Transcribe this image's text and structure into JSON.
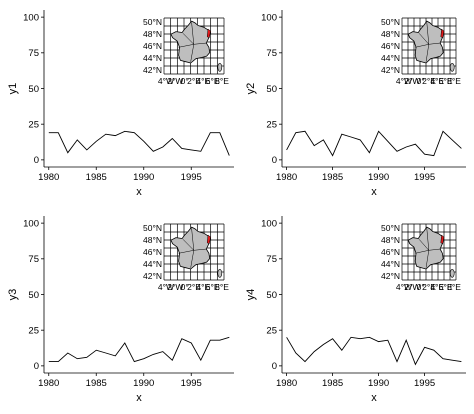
{
  "chart_data": [
    {
      "type": "line",
      "xlabel": "x",
      "ylabel": "y1",
      "xlim": [
        1979.5,
        1999.5
      ],
      "ylim": [
        -5,
        105
      ],
      "xticks": [
        "1980",
        "1985",
        "1990",
        "1995"
      ],
      "yticks": [
        "0",
        "25",
        "50",
        "75",
        "100"
      ],
      "grid": false,
      "x": [
        1980,
        1981,
        1982,
        1983,
        1984,
        1985,
        1986,
        1987,
        1988,
        1989,
        1990,
        1991,
        1992,
        1993,
        1994,
        1995,
        1996,
        1997,
        1998,
        1999
      ],
      "series": [
        {
          "values": [
            19,
            19,
            5,
            14,
            7,
            13,
            18,
            17,
            20,
            19,
            13,
            6,
            9,
            15,
            8,
            7,
            6,
            19,
            19,
            3
          ]
        }
      ],
      "inset_map": {
        "lat_labels": [
          "50°N",
          "48°N",
          "46°N",
          "44°N",
          "42°N"
        ],
        "lon_labels": [
          "4°W",
          "2°W",
          "0°",
          "2°E",
          "4°E",
          "6°E",
          "8°E"
        ]
      }
    },
    {
      "type": "line",
      "xlabel": "x",
      "ylabel": "y2",
      "xlim": [
        1979.5,
        1999.5
      ],
      "ylim": [
        -5,
        105
      ],
      "xticks": [
        "1980",
        "1985",
        "1990",
        "1995"
      ],
      "yticks": [
        "0",
        "25",
        "50",
        "75",
        "100"
      ],
      "grid": false,
      "x": [
        1980,
        1981,
        1982,
        1983,
        1984,
        1985,
        1986,
        1987,
        1988,
        1989,
        1990,
        1991,
        1992,
        1993,
        1994,
        1995,
        1996,
        1997,
        1998,
        1999
      ],
      "series": [
        {
          "values": [
            7,
            19,
            20,
            10,
            14,
            3,
            18,
            16,
            14,
            5,
            20,
            13,
            6,
            9,
            11,
            4,
            3,
            20,
            14,
            8
          ]
        }
      ],
      "inset_map": {
        "lat_labels": [
          "50°N",
          "48°N",
          "46°N",
          "44°N",
          "42°N"
        ],
        "lon_labels": [
          "4°W",
          "2°W",
          "0°",
          "2°E",
          "4°E",
          "6°E",
          "8°E"
        ]
      }
    },
    {
      "type": "line",
      "xlabel": "x",
      "ylabel": "y3",
      "xlim": [
        1979.5,
        1999.5
      ],
      "ylim": [
        -5,
        105
      ],
      "xticks": [
        "1980",
        "1985",
        "1990",
        "1995"
      ],
      "yticks": [
        "0",
        "25",
        "50",
        "75",
        "100"
      ],
      "grid": false,
      "x": [
        1980,
        1981,
        1982,
        1983,
        1984,
        1985,
        1986,
        1987,
        1988,
        1989,
        1990,
        1991,
        1992,
        1993,
        1994,
        1995,
        1996,
        1997,
        1998,
        1999
      ],
      "series": [
        {
          "values": [
            3,
            3,
            9,
            5,
            6,
            11,
            9,
            7,
            16,
            3,
            5,
            8,
            10,
            4,
            19,
            16,
            4,
            18,
            18,
            20
          ]
        }
      ],
      "inset_map": {
        "lat_labels": [
          "50°N",
          "48°N",
          "46°N",
          "44°N",
          "42°N"
        ],
        "lon_labels": [
          "4°W",
          "2°W",
          "0°",
          "2°E",
          "4°E",
          "6°E",
          "8°E"
        ]
      }
    },
    {
      "type": "line",
      "xlabel": "x",
      "ylabel": "y4",
      "xlim": [
        1979.5,
        1999.5
      ],
      "ylim": [
        -5,
        105
      ],
      "xticks": [
        "1980",
        "1985",
        "1990",
        "1995"
      ],
      "yticks": [
        "0",
        "25",
        "50",
        "75",
        "100"
      ],
      "grid": false,
      "x": [
        1980,
        1981,
        1982,
        1983,
        1984,
        1985,
        1986,
        1987,
        1988,
        1989,
        1990,
        1991,
        1992,
        1993,
        1994,
        1995,
        1996,
        1997,
        1998,
        1999
      ],
      "series": [
        {
          "values": [
            20,
            9,
            3,
            10,
            15,
            19,
            11,
            20,
            19,
            20,
            17,
            18,
            3,
            18,
            1,
            13,
            11,
            5,
            4,
            3
          ]
        }
      ],
      "inset_map": {
        "lat_labels": [
          "50°N",
          "48°N",
          "46°N",
          "44°N",
          "42°N"
        ],
        "lon_labels": [
          "4°W",
          "2°W",
          "0°",
          "2°E",
          "4°E",
          "6°E",
          "8°E"
        ]
      }
    }
  ],
  "colors": {
    "line": "#000000",
    "axis": "#000000",
    "text": "#000000",
    "map_fill": "#bebebe",
    "highlight": "#e41a1c",
    "background": "#ffffff"
  }
}
